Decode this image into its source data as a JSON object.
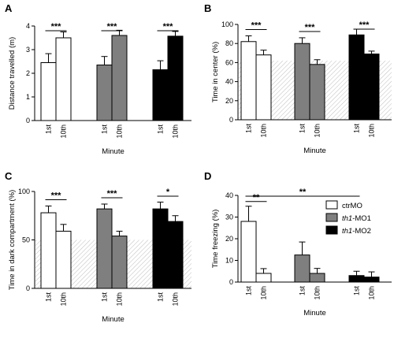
{
  "colors": {
    "ctrMO": "#ffffff",
    "th1_MO1": "#7f7f7f",
    "th1_MO2": "#000000",
    "stroke": "#000000"
  },
  "legend": [
    {
      "prefix": "",
      "italic": "",
      "suffix": "ctrMO",
      "color": "#ffffff"
    },
    {
      "prefix": "",
      "italic": "th1",
      "suffix": "-MO1",
      "color": "#7f7f7f"
    },
    {
      "prefix": "",
      "italic": "th1",
      "suffix": "-MO2",
      "color": "#000000"
    }
  ],
  "chart_data": [
    {
      "panel": "A",
      "type": "bar",
      "xlabel": "Minute",
      "ylabel": "Distance travelled (m)",
      "ylim": [
        0,
        4
      ],
      "yticks": [
        0,
        1,
        2,
        3,
        4
      ],
      "categories": [
        "1st",
        "10th",
        "1st",
        "10th",
        "1st",
        "10th"
      ],
      "groups": [
        "ctrMO",
        "ctrMO",
        "th1_MO1",
        "th1_MO1",
        "th1_MO2",
        "th1_MO2"
      ],
      "values": [
        2.45,
        3.5,
        2.35,
        3.6,
        2.15,
        3.57
      ],
      "errors": [
        0.38,
        0.25,
        0.36,
        0.22,
        0.38,
        0.2
      ],
      "chance_level": null,
      "significance": [
        {
          "pair": [
            0,
            1
          ],
          "label": "***"
        },
        {
          "pair": [
            2,
            3
          ],
          "label": "***"
        },
        {
          "pair": [
            4,
            5
          ],
          "label": "***"
        }
      ]
    },
    {
      "panel": "B",
      "type": "bar",
      "xlabel": "Minute",
      "ylabel": "Time in center (%)",
      "ylim": [
        0,
        100
      ],
      "yticks": [
        0,
        20,
        40,
        60,
        80,
        100
      ],
      "categories": [
        "1st",
        "10th",
        "1st",
        "10th",
        "1st",
        "10th"
      ],
      "groups": [
        "ctrMO",
        "ctrMO",
        "th1_MO1",
        "th1_MO1",
        "th1_MO2",
        "th1_MO2"
      ],
      "values": [
        82,
        68,
        80,
        58,
        89,
        69
      ],
      "errors": [
        6,
        5,
        6,
        5,
        6,
        3
      ],
      "chance_level": 62,
      "significance": [
        {
          "pair": [
            0,
            1
          ],
          "label": "***"
        },
        {
          "pair": [
            2,
            3
          ],
          "label": "***"
        },
        {
          "pair": [
            4,
            5
          ],
          "label": "***"
        }
      ]
    },
    {
      "panel": "C",
      "type": "bar",
      "xlabel": "Minute",
      "ylabel": "Time in dark compartment (%)",
      "ylim": [
        0,
        100
      ],
      "yticks": [
        0,
        50,
        100
      ],
      "categories": [
        "1st",
        "10th",
        "1st",
        "10th",
        "1st",
        "10th"
      ],
      "groups": [
        "ctrMO",
        "ctrMO",
        "th1_MO1",
        "th1_MO1",
        "th1_MO2",
        "th1_MO2"
      ],
      "values": [
        78,
        59,
        82,
        54,
        82,
        69
      ],
      "errors": [
        7,
        7,
        5,
        5,
        7,
        6
      ],
      "chance_level": 50,
      "significance": [
        {
          "pair": [
            0,
            1
          ],
          "label": "***"
        },
        {
          "pair": [
            2,
            3
          ],
          "label": "***"
        },
        {
          "pair": [
            4,
            5
          ],
          "label": "*"
        }
      ]
    },
    {
      "panel": "D",
      "type": "bar",
      "xlabel": "Minute",
      "ylabel": "Time freezing (%)",
      "ylim": [
        0,
        40
      ],
      "yticks": [
        0,
        10,
        20,
        30,
        40
      ],
      "categories": [
        "1st",
        "10th",
        "1st",
        "10th",
        "1st",
        "10th"
      ],
      "groups": [
        "ctrMO",
        "ctrMO",
        "th1_MO1",
        "th1_MO1",
        "th1_MO2",
        "th1_MO2"
      ],
      "values": [
        28,
        4,
        12.5,
        4,
        3,
        2.3
      ],
      "errors": [
        7,
        2.2,
        6,
        2.3,
        2,
        2.4
      ],
      "chance_level": null,
      "significance": [
        {
          "pair": [
            0,
            1
          ],
          "label": "**"
        },
        {
          "pair": [
            0,
            4
          ],
          "label": "**"
        }
      ],
      "legend": "right"
    }
  ]
}
